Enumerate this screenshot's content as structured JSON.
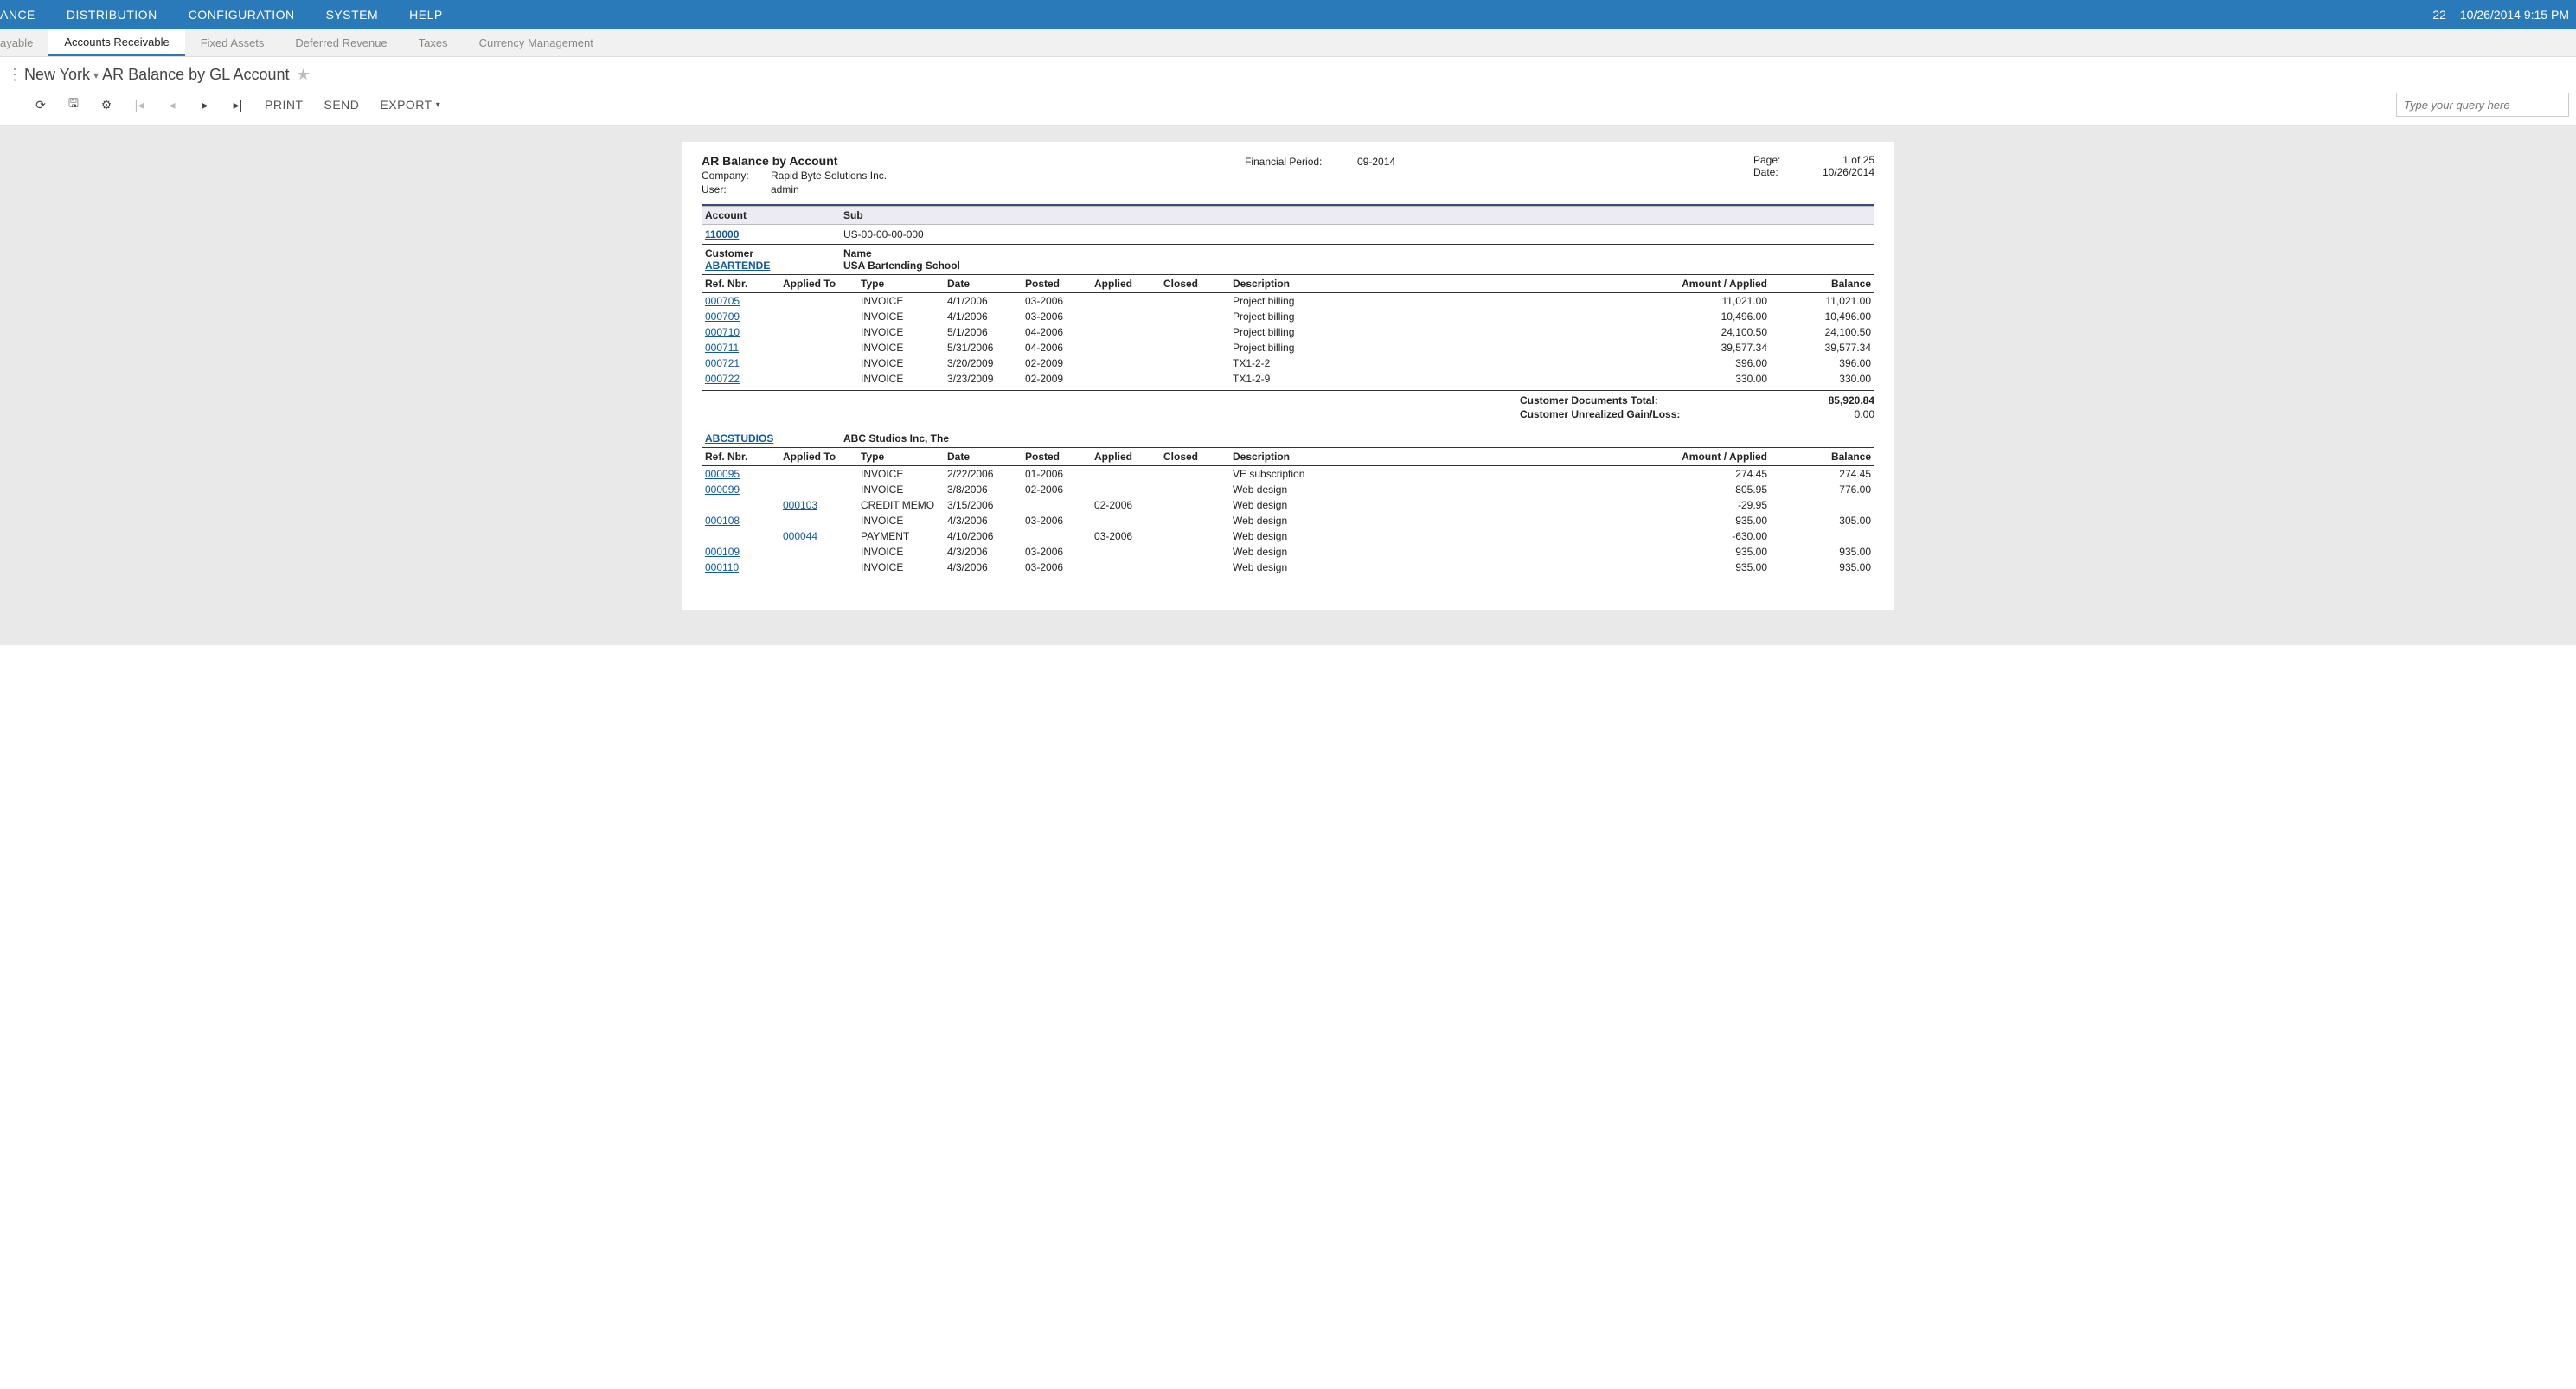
{
  "colors": {
    "topnav_bg": "#2a7ab9",
    "topnav_fg": "#ffffff",
    "subnav_bg": "#f1f1f1",
    "active_underline": "#2a7ab9",
    "link": "#1258a1",
    "report_bg": "#e9e9e9",
    "section_bg": "#ecebf4",
    "hr": "#3b4a7a"
  },
  "topnav": {
    "items": [
      "ANCE",
      "DISTRIBUTION",
      "CONFIGURATION",
      "SYSTEM",
      "HELP"
    ],
    "status_num": "22",
    "status_date": "10/26/2014 9:15 PM"
  },
  "subnav": {
    "items": [
      "ayable",
      "Accounts Receivable",
      "Fixed Assets",
      "Deferred Revenue",
      "Taxes",
      "Currency Management"
    ],
    "active_index": 1
  },
  "breadcrumb": {
    "branch": "New York",
    "page": "AR Balance by GL Account"
  },
  "toolbar": {
    "print": "PRINT",
    "send": "SEND",
    "export": "EXPORT",
    "query_placeholder": "Type your query here"
  },
  "report": {
    "title": "AR Balance by Account",
    "company_label": "Company:",
    "company": "Rapid Byte Solutions Inc.",
    "user_label": "User:",
    "user": "admin",
    "fin_period_label": "Financial Period:",
    "fin_period": "09-2014",
    "page_label": "Page:",
    "page_value": "1 of 25",
    "date_label": "Date:",
    "date_value": "10/26/2014",
    "account_hdr": "Account",
    "sub_hdr": "Sub",
    "account_code": "110000",
    "sub_code": "US-00-00-00-000",
    "customer_hdr": "Customer",
    "name_hdr": "Name",
    "columns": {
      "ref": "Ref. Nbr.",
      "applied_to": "Applied To",
      "type": "Type",
      "date": "Date",
      "posted": "Posted",
      "applied": "Applied",
      "closed": "Closed",
      "description": "Description",
      "amount": "Amount / Applied",
      "balance": "Balance"
    },
    "totals": {
      "docs_label": "Customer Documents Total:",
      "gainloss_label": "Customer Unrealized Gain/Loss:"
    },
    "customers": [
      {
        "code": "ABARTENDE",
        "name": "USA Bartending School",
        "rows": [
          {
            "ref": "000705",
            "applied_to": "",
            "type": "INVOICE",
            "date": "4/1/2006",
            "posted": "03-2006",
            "applied": "",
            "closed": "",
            "desc": "Project billing",
            "amount": "11,021.00",
            "balance": "11,021.00"
          },
          {
            "ref": "000709",
            "applied_to": "",
            "type": "INVOICE",
            "date": "4/1/2006",
            "posted": "03-2006",
            "applied": "",
            "closed": "",
            "desc": "Project billing",
            "amount": "10,496.00",
            "balance": "10,496.00"
          },
          {
            "ref": "000710",
            "applied_to": "",
            "type": "INVOICE",
            "date": "5/1/2006",
            "posted": "04-2006",
            "applied": "",
            "closed": "",
            "desc": "Project billing",
            "amount": "24,100.50",
            "balance": "24,100.50"
          },
          {
            "ref": "000711",
            "applied_to": "",
            "type": "INVOICE",
            "date": "5/31/2006",
            "posted": "04-2006",
            "applied": "",
            "closed": "",
            "desc": "Project billing",
            "amount": "39,577.34",
            "balance": "39,577.34"
          },
          {
            "ref": "000721",
            "applied_to": "",
            "type": "INVOICE",
            "date": "3/20/2009",
            "posted": "02-2009",
            "applied": "",
            "closed": "",
            "desc": "TX1-2-2",
            "amount": "396.00",
            "balance": "396.00"
          },
          {
            "ref": "000722",
            "applied_to": "",
            "type": "INVOICE",
            "date": "3/23/2009",
            "posted": "02-2009",
            "applied": "",
            "closed": "",
            "desc": "TX1-2-9",
            "amount": "330.00",
            "balance": "330.00"
          }
        ],
        "docs_total": "85,920.84",
        "gainloss": "0.00"
      },
      {
        "code": "ABCSTUDIOS",
        "name": "ABC Studios Inc, The",
        "rows": [
          {
            "ref": "000095",
            "applied_to": "",
            "type": "INVOICE",
            "date": "2/22/2006",
            "posted": "01-2006",
            "applied": "",
            "closed": "",
            "desc": "VE subscription",
            "amount": "274.45",
            "balance": "274.45"
          },
          {
            "ref": "000099",
            "applied_to": "",
            "type": "INVOICE",
            "date": "3/8/2006",
            "posted": "02-2006",
            "applied": "",
            "closed": "",
            "desc": "Web design",
            "amount": "805.95",
            "balance": "776.00"
          },
          {
            "ref": "",
            "applied_to": "000103",
            "type": "CREDIT MEMO",
            "date": "3/15/2006",
            "posted": "",
            "applied": "02-2006",
            "closed": "",
            "desc": "Web design",
            "amount": "-29.95",
            "balance": ""
          },
          {
            "ref": "000108",
            "applied_to": "",
            "type": "INVOICE",
            "date": "4/3/2006",
            "posted": "03-2006",
            "applied": "",
            "closed": "",
            "desc": "Web design",
            "amount": "935.00",
            "balance": "305.00"
          },
          {
            "ref": "",
            "applied_to": "000044",
            "type": "PAYMENT",
            "date": "4/10/2006",
            "posted": "",
            "applied": "03-2006",
            "closed": "",
            "desc": "Web design",
            "amount": "-630.00",
            "balance": ""
          },
          {
            "ref": "000109",
            "applied_to": "",
            "type": "INVOICE",
            "date": "4/3/2006",
            "posted": "03-2006",
            "applied": "",
            "closed": "",
            "desc": "Web design",
            "amount": "935.00",
            "balance": "935.00"
          },
          {
            "ref": "000110",
            "applied_to": "",
            "type": "INVOICE",
            "date": "4/3/2006",
            "posted": "03-2006",
            "applied": "",
            "closed": "",
            "desc": "Web design",
            "amount": "935.00",
            "balance": "935.00"
          }
        ]
      }
    ]
  }
}
